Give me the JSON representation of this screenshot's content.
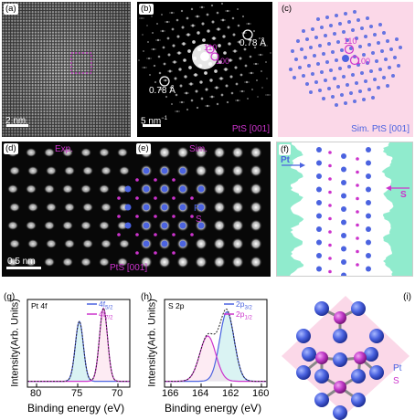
{
  "panels": {
    "a": {
      "label": "(a)",
      "scale": "2 nm"
    },
    "b": {
      "label": "(b)",
      "hkl1": "100",
      "hkl2": "110",
      "dist_left": "0.78 Å",
      "dist_right": "0.78 Å",
      "scale": "5 nm",
      "scale_sup": "−1",
      "footer": "PtS [001]"
    },
    "c": {
      "label": "(c)",
      "hkl1": "100",
      "hkl2": "110",
      "footer": "Sim. PtS [001]"
    },
    "d": {
      "label": "(d)",
      "tag": "Exp.",
      "scale": "0.5 nm",
      "footer": "PtS [001]"
    },
    "e": {
      "label": "(e)",
      "tag": "Sim.",
      "pt": "Pt",
      "s": "S"
    },
    "f": {
      "label": "(f)",
      "pt": "Pt",
      "s": "S"
    },
    "g": {
      "label": "(g)",
      "core": "Pt 4f",
      "legend1": "4f",
      "legend1_sub": "5/2",
      "legend2": "4f",
      "legend2_sub": "7/2",
      "xlabel": "Binding energy (eV)",
      "ylabel": "Intensity(Arb. Units)",
      "xticks": [
        "80",
        "75",
        "70"
      ]
    },
    "h": {
      "label": "(h)",
      "core": "S 2p",
      "legend1": "2p",
      "legend1_sub": "3/2",
      "legend2": "2p",
      "legend2_sub": "1/2",
      "xlabel": "Binding energy (eV)",
      "ylabel": "Intensity(Arb. Units)",
      "xticks": [
        "166",
        "164",
        "162",
        "160"
      ]
    },
    "i": {
      "label": "(i)",
      "pt": "Pt",
      "s": "S"
    }
  },
  "colors": {
    "pt": "#4b63e0",
    "s": "#c23bc9",
    "magenta": "#cc33cc",
    "cyan": "#b5e8e8",
    "pinkbg": "#fbd8e8",
    "green": "#7de7c4"
  }
}
